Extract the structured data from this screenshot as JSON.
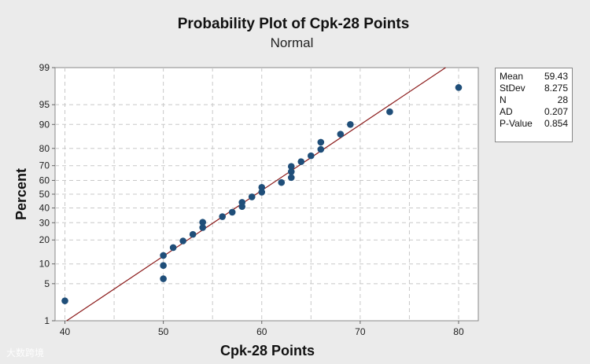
{
  "chart_data": {
    "type": "scatter",
    "title": "Probability Plot of Cpk-28 Points",
    "subtitle": "Normal",
    "xlabel": "Cpk-28 Points",
    "ylabel": "Percent",
    "xlim": [
      39,
      82
    ],
    "ylim_percent": [
      1,
      99
    ],
    "y_scale": "normal-probability",
    "x_ticks": [
      40,
      50,
      60,
      70,
      80
    ],
    "y_ticks": [
      1,
      5,
      10,
      20,
      30,
      40,
      50,
      60,
      70,
      80,
      90,
      95,
      99
    ],
    "grid": true,
    "fit_line": {
      "mean": 59.43,
      "stdev": 8.275,
      "color": "#8b1a1a"
    },
    "point_color": "#1f4e79",
    "points": [
      {
        "x": 40,
        "y": 2.5
      },
      {
        "x": 50,
        "y": 6.0
      },
      {
        "x": 50,
        "y": 9.5
      },
      {
        "x": 50,
        "y": 13
      },
      {
        "x": 51,
        "y": 16.3
      },
      {
        "x": 52,
        "y": 19.5
      },
      {
        "x": 53,
        "y": 23
      },
      {
        "x": 54,
        "y": 27
      },
      {
        "x": 54,
        "y": 30.3
      },
      {
        "x": 56,
        "y": 34
      },
      {
        "x": 57,
        "y": 37
      },
      {
        "x": 58,
        "y": 41
      },
      {
        "x": 58,
        "y": 44
      },
      {
        "x": 59,
        "y": 48
      },
      {
        "x": 60,
        "y": 51.5
      },
      {
        "x": 60,
        "y": 55
      },
      {
        "x": 62,
        "y": 58.5
      },
      {
        "x": 63,
        "y": 62
      },
      {
        "x": 63,
        "y": 66
      },
      {
        "x": 63,
        "y": 69.5
      },
      {
        "x": 64,
        "y": 72.5
      },
      {
        "x": 65,
        "y": 76
      },
      {
        "x": 66,
        "y": 79.5
      },
      {
        "x": 66,
        "y": 83
      },
      {
        "x": 68,
        "y": 86.5
      },
      {
        "x": 69,
        "y": 90
      },
      {
        "x": 73,
        "y": 93.5
      },
      {
        "x": 80,
        "y": 97.5
      }
    ]
  },
  "stats": [
    {
      "label": "Mean",
      "value": "59.43"
    },
    {
      "label": "StDev",
      "value": "8.275"
    },
    {
      "label": "N",
      "value": "28"
    },
    {
      "label": "AD",
      "value": "0.207"
    },
    {
      "label": "P-Value",
      "value": "0.854"
    }
  ],
  "watermark": "大数跨境"
}
